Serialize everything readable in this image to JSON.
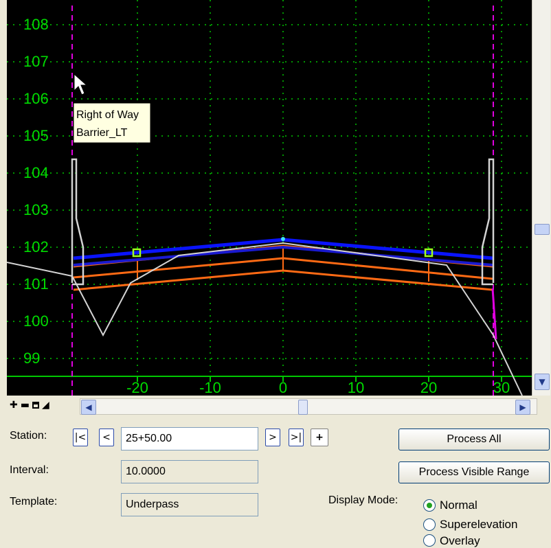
{
  "viewer": {
    "y_ticks": [
      "108",
      "107",
      "106",
      "105",
      "104",
      "103",
      "102",
      "101",
      "100",
      "99"
    ],
    "x_ticks": [
      "-20",
      "-10",
      "0",
      "10",
      "20",
      "30"
    ],
    "tooltip": {
      "line1": "Right of Way",
      "line2": "Barrier_LT"
    },
    "colors": {
      "grid": "#00c800",
      "label": "#00dc00",
      "pave_top": "#0a14ff",
      "pave_mid": "#1a1ad0",
      "sub": "#ff6a14",
      "ground": "#d4d4d4",
      "row": "#e000e0",
      "marker": "#a0ff20"
    }
  },
  "toolbar_icons": [
    "plus-icon",
    "minus-icon",
    "window-icon",
    "terrain-icon"
  ],
  "controls": {
    "station_label": "Station:",
    "station_value": "25+50.00",
    "interval_label": "Interval:",
    "interval_value": "10.0000",
    "template_label": "Template:",
    "template_value": "Underpass",
    "nav": {
      "first": "|<",
      "prev": "<",
      "next": ">",
      "last": ">|",
      "pick": "+"
    },
    "process_all": "Process All",
    "process_visible": "Process Visible Range",
    "display_mode_label": "Display Mode:",
    "modes": [
      {
        "label": "Normal",
        "selected": true
      },
      {
        "label": "Superelevation",
        "selected": false
      },
      {
        "label": "Overlay",
        "selected": false
      }
    ]
  }
}
